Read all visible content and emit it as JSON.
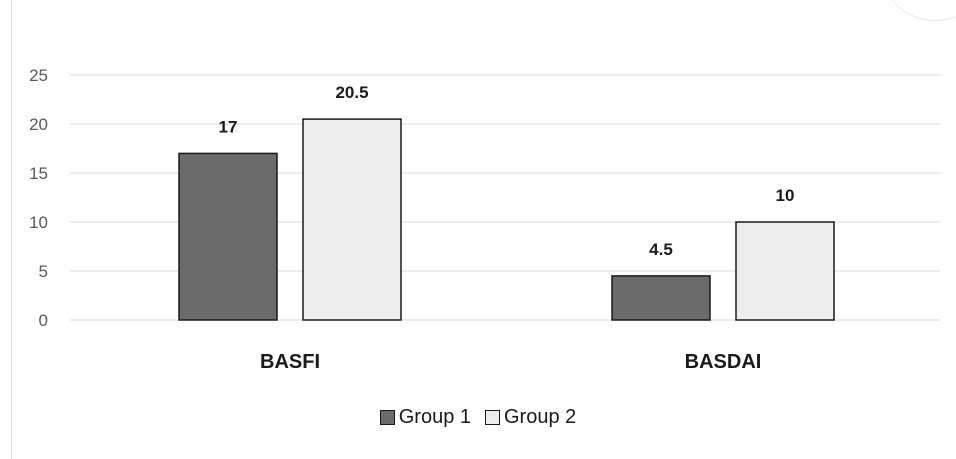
{
  "chart_data": {
    "type": "bar",
    "categories": [
      "BASFI",
      "BASDAI"
    ],
    "series": [
      {
        "name": "Group 1",
        "values": [
          17,
          4.5
        ],
        "color": "#6b6b6b"
      },
      {
        "name": "Group 2",
        "values": [
          20.5,
          10
        ],
        "color": "#ededed"
      }
    ],
    "data_labels": [
      [
        "17",
        "4.5"
      ],
      [
        "20.5",
        "10"
      ]
    ],
    "yticks": [
      "0",
      "5",
      "10",
      "15",
      "20",
      "25"
    ],
    "ylim": [
      0,
      25
    ],
    "grid": true,
    "legend": "bottom"
  }
}
